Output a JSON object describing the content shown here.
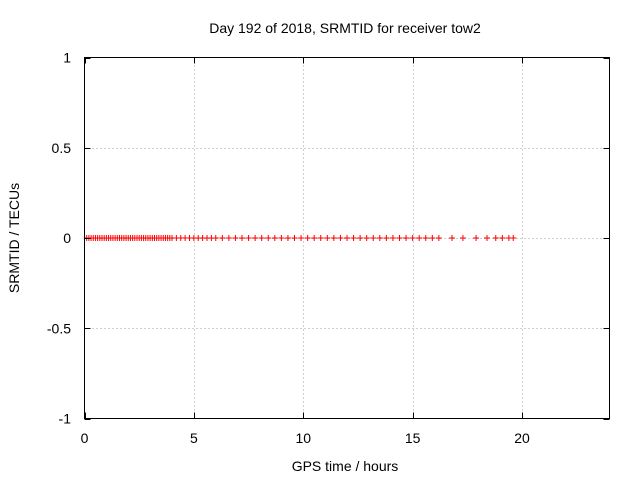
{
  "chart_data": {
    "type": "scatter",
    "title": "Day 192 of 2018, SRMTID for receiver tow2",
    "xlabel": "GPS time / hours",
    "ylabel": "SRMTID / TECUs",
    "xlim": [
      0,
      24
    ],
    "ylim": [
      -1,
      1
    ],
    "x_ticks": [
      0,
      5,
      10,
      15,
      20
    ],
    "y_ticks": [
      1,
      0.5,
      0,
      -0.5,
      -1
    ],
    "x_tick_labels": [
      "0",
      "5",
      "10",
      "15",
      "20"
    ],
    "y_tick_labels": [
      "1",
      "0.5",
      "0",
      "-0.5",
      "-1"
    ],
    "grid": true,
    "marker": "plus",
    "color": "#ff0000",
    "series": [
      {
        "x": [
          0.1,
          0.2,
          0.3,
          0.4,
          0.5,
          0.6,
          0.7,
          0.8,
          0.9,
          1.0,
          1.1,
          1.2,
          1.3,
          1.4,
          1.5,
          1.6,
          1.7,
          1.8,
          1.9,
          2.0,
          2.1,
          2.2,
          2.3,
          2.4,
          2.5,
          2.6,
          2.7,
          2.8,
          2.9,
          3.0,
          3.1,
          3.2,
          3.3,
          3.4,
          3.5,
          3.6,
          3.7,
          3.8,
          3.9,
          4.0,
          4.2,
          4.4,
          4.6,
          4.8,
          5.0,
          5.2,
          5.4,
          5.6,
          5.8,
          6.0,
          6.3,
          6.6,
          6.9,
          7.2,
          7.5,
          7.8,
          8.1,
          8.4,
          8.7,
          9.0,
          9.3,
          9.6,
          9.9,
          10.2,
          10.5,
          10.8,
          11.1,
          11.4,
          11.7,
          12.0,
          12.3,
          12.6,
          12.9,
          13.2,
          13.5,
          13.8,
          14.1,
          14.4,
          14.7,
          15.0,
          15.3,
          15.6,
          15.9,
          16.2,
          16.8,
          17.3,
          17.9,
          18.4,
          18.8,
          19.1,
          19.4,
          19.6
        ],
        "y": [
          0,
          0,
          0,
          0,
          0,
          0,
          0,
          0,
          0,
          0,
          0,
          0,
          0,
          0,
          0,
          0,
          0,
          0,
          0,
          0,
          0,
          0,
          0,
          0,
          0,
          0,
          0,
          0,
          0,
          0,
          0,
          0,
          0,
          0,
          0,
          0,
          0,
          0,
          0,
          0,
          0,
          0,
          0,
          0,
          0,
          0,
          0,
          0,
          0,
          0,
          0,
          0,
          0,
          0,
          0,
          0,
          0,
          0,
          0,
          0,
          0,
          0,
          0,
          0,
          0,
          0,
          0,
          0,
          0,
          0,
          0,
          0,
          0,
          0,
          0,
          0,
          0,
          0,
          0,
          0,
          0,
          0,
          0,
          0,
          0,
          0,
          0,
          0,
          0,
          0,
          0,
          0
        ]
      }
    ]
  }
}
